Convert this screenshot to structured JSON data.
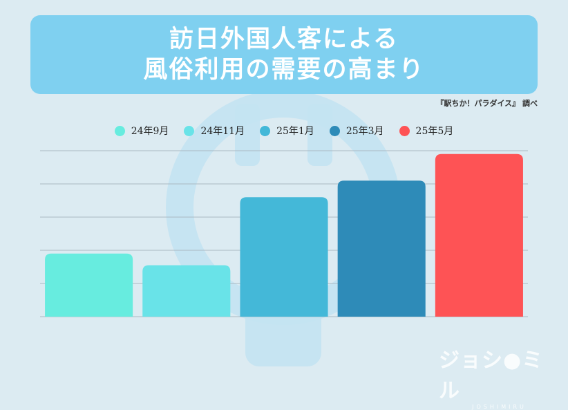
{
  "title": {
    "line1": "訪日外国人客による",
    "line2": "風俗利用の需要の高まり"
  },
  "source": "『駅ちか！パラダイス』 調べ",
  "logo": {
    "text": "ジョシ",
    "text2": "ミル",
    "sub": "JOSHIMIRU"
  },
  "colors": {
    "background": "#dcebf2",
    "title_bg": "#7fd0f0",
    "grid": "#aab9c2"
  },
  "chart_data": {
    "type": "bar",
    "categories": [
      "24年9月",
      "24年11月",
      "25年1月",
      "25年3月",
      "25年5月"
    ],
    "values": [
      38,
      31,
      72,
      82,
      98
    ],
    "colors": [
      "#67ecdf",
      "#69e3e8",
      "#44b8d8",
      "#2e8bb8",
      "#fe5355"
    ],
    "title": "訪日外国人客による風俗利用の需要の高まり",
    "xlabel": "",
    "ylabel": "",
    "ylim": [
      0,
      100
    ],
    "grid": true,
    "legend": "top",
    "tick_labels_shown": false
  }
}
